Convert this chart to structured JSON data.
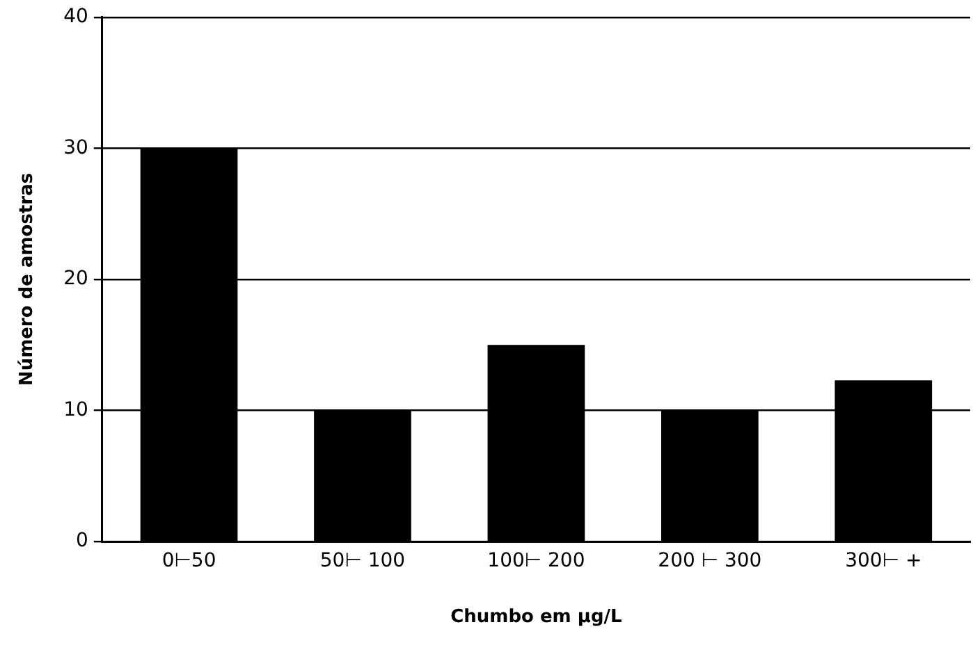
{
  "chart_data": {
    "type": "bar",
    "xlabel": "Chumbo em µg/L",
    "ylabel": "Número de amostras",
    "categories": [
      "0⊢50",
      "50⊢ 100",
      "100⊢ 200",
      "200 ⊢ 300",
      "300⊢ +"
    ],
    "values": [
      30,
      10,
      15,
      10,
      12.3
    ],
    "color": "#000000",
    "ylim": [
      0,
      40
    ],
    "yticks": [
      0,
      10,
      20,
      30,
      40
    ],
    "grid": "y",
    "legend": false
  }
}
